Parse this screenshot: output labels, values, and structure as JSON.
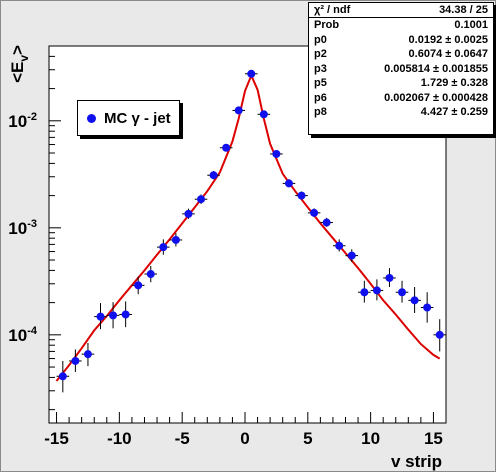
{
  "chart_data": {
    "type": "scatter",
    "title": "",
    "xlabel": "v strip",
    "ylabel": "<E_v>",
    "xlim": [
      -15.6,
      16.0
    ],
    "ylim": [
      1.5e-05,
      0.05
    ],
    "log_y": true,
    "grid": false,
    "x_ticks": [
      -15,
      -10,
      -5,
      0,
      5,
      10,
      15
    ],
    "x_tick_labels": [
      "-15",
      "-10",
      "-5",
      "0",
      "5",
      "10",
      "15"
    ],
    "y_ticks": [
      0.0001,
      0.001,
      0.01
    ],
    "y_tick_labels": [
      [
        "10",
        "-4"
      ],
      [
        "10",
        "-3"
      ],
      [
        "10",
        "-2"
      ]
    ],
    "legend": {
      "placement": "top-left",
      "label": "MC γ - jet",
      "marker_color": "#1010ee"
    },
    "series": [
      {
        "name": "MC γ - jet",
        "kind": "points",
        "color": "#1010ee",
        "x": [
          -14.5,
          -13.5,
          -12.5,
          -11.5,
          -10.5,
          -9.5,
          -8.5,
          -7.5,
          -6.5,
          -5.5,
          -4.5,
          -3.5,
          -2.5,
          -1.5,
          -0.5,
          0.5,
          1.5,
          2.5,
          3.5,
          4.5,
          5.5,
          6.5,
          7.5,
          8.5,
          9.5,
          10.5,
          11.5,
          12.5,
          13.5,
          14.5,
          15.5
        ],
        "y": [
          4.1e-05,
          5.7e-05,
          6.6e-05,
          0.000148,
          0.000152,
          0.000155,
          0.00029,
          0.00037,
          0.00066,
          0.00077,
          0.00135,
          0.00185,
          0.0031,
          0.0056,
          0.0125,
          0.0275,
          0.0115,
          0.0049,
          0.0026,
          0.002,
          0.00138,
          0.00112,
          0.00068,
          0.00055,
          0.00025,
          0.00026,
          0.00034,
          0.00025,
          0.00021,
          0.00018,
          0.0001
        ],
        "y_err_low": [
          1.2e-05,
          1.2e-05,
          1.5e-05,
          3.5e-05,
          3.7e-05,
          3.7e-05,
          5e-05,
          6e-05,
          0.0001,
          0.0001,
          0.00014,
          0.00018,
          0.00025,
          0.0004,
          0.0009,
          0.0015,
          0.0008,
          0.0003,
          0.0002,
          0.00015,
          0.00012,
          0.0001,
          8e-05,
          7e-05,
          5e-05,
          5e-05,
          6e-05,
          5e-05,
          5e-05,
          5e-05,
          3e-05
        ],
        "y_err_high": [
          1.6e-05,
          1.6e-05,
          1.8e-05,
          5e-05,
          5e-05,
          5e-05,
          6e-05,
          7e-05,
          0.00012,
          0.00012,
          0.00016,
          0.0002,
          0.0003,
          0.00045,
          0.001,
          0.0016,
          0.0009,
          0.00035,
          0.00025,
          0.00018,
          0.00014,
          0.00012,
          0.0001,
          8e-05,
          7e-05,
          7e-05,
          8e-05,
          7e-05,
          7e-05,
          7e-05,
          4e-05
        ]
      },
      {
        "kind": "fit-curve",
        "color": "#dd0000",
        "x": [
          -15,
          -14,
          -13,
          -12,
          -11,
          -10,
          -9,
          -8,
          -7,
          -6,
          -5,
          -4,
          -3,
          -2,
          -1,
          -0.5,
          0,
          0.5,
          1,
          1.5,
          2,
          3,
          4,
          5,
          6,
          7,
          8,
          9,
          10,
          11,
          12,
          13,
          14,
          15,
          15.5
        ],
        "y": [
          3.7e-05,
          5.2e-05,
          7.5e-05,
          0.00011,
          0.00015,
          0.00021,
          0.00029,
          0.0004,
          0.00056,
          0.00078,
          0.0011,
          0.00155,
          0.0022,
          0.0033,
          0.0064,
          0.0105,
          0.019,
          0.0265,
          0.0195,
          0.0105,
          0.0061,
          0.0032,
          0.0022,
          0.00155,
          0.0011,
          0.0008,
          0.00058,
          0.00042,
          0.0003,
          0.00021,
          0.000155,
          0.000112,
          8.2e-05,
          6.5e-05,
          6e-05
        ]
      }
    ]
  },
  "stats": {
    "header_label": "χ² / ndf",
    "header_value": "34.38 / 25",
    "rows": [
      {
        "label": "Prob",
        "value": "0.1001"
      },
      {
        "label": "p0",
        "value": "0.0192 ± 0.0025"
      },
      {
        "label": "p2",
        "value": "0.6074 ± 0.0647"
      },
      {
        "label": "p3",
        "value": "0.005814 ± 0.001855"
      },
      {
        "label": "p5",
        "value": "1.729 ± 0.328"
      },
      {
        "label": "p6",
        "value": "0.002067 ± 0.000428"
      },
      {
        "label": "p8",
        "value": "4.427 ± 0.259"
      }
    ]
  }
}
